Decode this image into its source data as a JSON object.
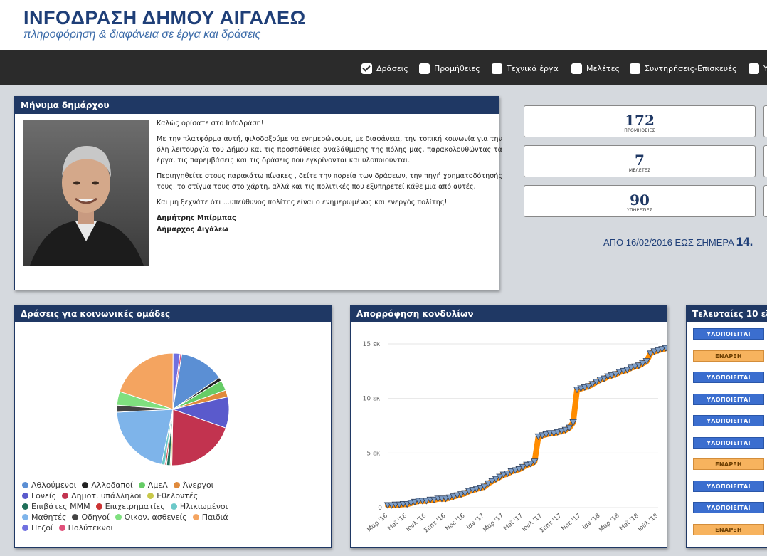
{
  "header": {
    "title": "INFOΔΡΑΣΗ ΔΗΜΟΥ ΑΙΓΑΛΕΩ",
    "subtitle": "πληροφόρηση & διαφάνεια σε έργα και δράσεις"
  },
  "filters": [
    {
      "label": "Δράσεις",
      "checked": true
    },
    {
      "label": "Προμήθειες",
      "checked": false
    },
    {
      "label": "Τεχνικά έργα",
      "checked": false
    },
    {
      "label": "Μελέτες",
      "checked": false
    },
    {
      "label": "Συντηρήσεις-Επισκευές",
      "checked": false
    },
    {
      "label": "Υ",
      "checked": false
    }
  ],
  "mayor": {
    "title": "Μήνυμα δημάρχου",
    "greeting": "Καλώς ορίσατε στο InfoΔράση!",
    "p1": "Με την πλατφόρμα αυτή, φιλοδοξούμε να ενημερώνουμε, με διαφάνεια, την τοπική κοινωνία για την όλη λειτουργία του Δήμου και τις προσπάθειες αναβάθμισης της πόλης μας, παρακολουθώντας τα έργα, τις παρεμβάσεις και τις δράσεις που εγκρίνονται και υλοποιούνται.",
    "p2": "Περιηγηθείτε στους παρακάτω πίνακες , δείτε την πορεία των δράσεων, την πηγή χρηματοδότησής τους, το στίγμα τους στο χάρτη, αλλά και τις πολιτικές που εξυπηρετεί κάθε μια από αυτές.",
    "p3": "Και μη ξεχνάτε ότι ...υπεύθυνος πολίτης είναι ο ενημερωμένος και ενεργός πολίτης!",
    "name": "Δημήτρης Μπίρμπας",
    "role": "Δήμαρχος Αιγάλεω"
  },
  "stats": [
    {
      "value": "172",
      "label": "ΠΡΟΜΗΘΕΙΕΣ"
    },
    {
      "value": "7",
      "label": "ΜΕΛΕΤΕΣ"
    },
    {
      "value": "90",
      "label": "ΥΠΗΡΕΣΙΕΣ"
    }
  ],
  "since": {
    "text": "ΑΠΟ 16/02/2016 ΕΩΣ ΣΗΜΕΡΑ",
    "amount": "14."
  },
  "groups_panel": {
    "title": "Δράσεις για κοινωνικές ομάδες"
  },
  "absorption_panel": {
    "title": "Απορρόφηση κονδυλίων"
  },
  "latest_panel": {
    "title": "Τελευταίες 10 εξ",
    "statuses": [
      "ΥΛΟΠΟΙΕΙΤΑΙ",
      "ΕΝΑΡΞΗ",
      "ΥΛΟΠΟΙΕΙΤΑΙ",
      "ΥΛΟΠΟΙΕΙΤΑΙ",
      "ΥΛΟΠΟΙΕΙΤΑΙ",
      "ΥΛΟΠΟΙΕΙΤΑΙ",
      "ΕΝΑΡΞΗ",
      "ΥΛΟΠΟΙΕΙΤΑΙ",
      "ΥΛΟΠΟΙΕΙΤΑΙ",
      "ΕΝΑΡΞΗ"
    ]
  },
  "chart_data": [
    {
      "type": "pie",
      "title": "Δράσεις για κοινωνικές ομάδες",
      "legend_position": "bottom",
      "slices": [
        {
          "name": "Αθλούμενοι",
          "value": 13,
          "color": "#5b8fd4"
        },
        {
          "name": "Αλλοδαποί",
          "value": 1,
          "color": "#222222"
        },
        {
          "name": "ΑμεΑ",
          "value": 3,
          "color": "#66cc66"
        },
        {
          "name": "Άνεργοι",
          "value": 2,
          "color": "#e08a3c"
        },
        {
          "name": "Γονείς",
          "value": 9,
          "color": "#5a5acc"
        },
        {
          "name": "Δημοτ. υπάλληλοι",
          "value": 20,
          "color": "#c2334f"
        },
        {
          "name": "Εθελοντές",
          "value": 0.5,
          "color": "#c8c84a"
        },
        {
          "name": "Επιβάτες ΜΜΜ",
          "value": 1,
          "color": "#1f6f5a"
        },
        {
          "name": "Επιχειρηματίες",
          "value": 0.5,
          "color": "#cc3333"
        },
        {
          "name": "Ηλικιωμένοι",
          "value": 1,
          "color": "#6cc9c9"
        },
        {
          "name": "Μαθητές",
          "value": 21,
          "color": "#7eb4ea"
        },
        {
          "name": "Οδηγοί",
          "value": 2,
          "color": "#444444"
        },
        {
          "name": "Οικον. ασθενείς",
          "value": 4,
          "color": "#7fe07f"
        },
        {
          "name": "Παιδιά",
          "value": 20,
          "color": "#f4a460"
        },
        {
          "name": "Πεζοί",
          "value": 2,
          "color": "#7070e0"
        },
        {
          "name": "Πολύτεκνοι",
          "value": 0.5,
          "color": "#e0507a"
        }
      ]
    },
    {
      "type": "line",
      "title": "Απορρόφηση κονδυλίων",
      "series_color": "#ff8c00",
      "ytick_labels": [
        "0",
        "5 εκ.",
        "10 εκ.",
        "15 εκ."
      ],
      "ylim": [
        0,
        15
      ],
      "xtick_labels": [
        "Μαρ '16",
        "Μαϊ '16",
        "Ιούλ '16",
        "Σεπτ '16",
        "Νοε '16",
        "Ιαν '17",
        "Μαρ '17",
        "Μαϊ '17",
        "Ιούλ '17",
        "Σεπτ '17",
        "Νοε '17",
        "Ιαν '18",
        "Μαρ '18",
        "Μαϊ '18",
        "Ιούλ '18"
      ],
      "x": [
        0,
        0.2,
        0.4,
        0.6,
        0.8,
        1,
        1.2,
        1.4,
        1.6,
        1.8,
        2,
        2.2,
        2.4,
        2.6,
        2.8,
        3,
        3.2,
        3.4,
        3.6,
        3.8,
        4,
        4.2,
        4.4,
        4.6,
        4.8,
        5,
        5.2,
        5.4,
        5.6,
        5.8,
        6,
        6.2,
        6.4,
        6.6,
        6.8,
        7,
        7.2,
        7.4,
        7.6,
        7.8,
        8,
        8.2,
        8.4,
        8.6,
        8.8,
        9,
        9.2,
        9.4,
        9.6,
        9.8,
        10,
        10.2,
        10.4,
        10.6,
        10.8,
        11,
        11.2,
        11.4,
        11.6,
        11.8,
        12,
        12.2,
        12.4,
        12.6,
        12.8,
        13,
        13.2,
        13.4,
        13.6,
        13.8,
        14,
        14.2,
        14.4
      ],
      "y": [
        0.2,
        0.2,
        0.25,
        0.25,
        0.3,
        0.3,
        0.4,
        0.5,
        0.6,
        0.6,
        0.6,
        0.7,
        0.7,
        0.8,
        0.8,
        0.8,
        0.9,
        1.0,
        1.1,
        1.2,
        1.3,
        1.5,
        1.6,
        1.7,
        1.8,
        1.9,
        2.2,
        2.4,
        2.6,
        2.8,
        3.0,
        3.1,
        3.3,
        3.4,
        3.5,
        3.7,
        3.9,
        4.0,
        4.2,
        6.5,
        6.6,
        6.7,
        6.8,
        6.8,
        6.9,
        7.0,
        7.1,
        7.3,
        7.8,
        10.8,
        10.9,
        11.0,
        11.1,
        11.3,
        11.5,
        11.7,
        11.8,
        12.0,
        12.1,
        12.2,
        12.4,
        12.5,
        12.6,
        12.8,
        12.9,
        13.0,
        13.2,
        13.4,
        14.1,
        14.3,
        14.4,
        14.5,
        14.6
      ]
    }
  ]
}
